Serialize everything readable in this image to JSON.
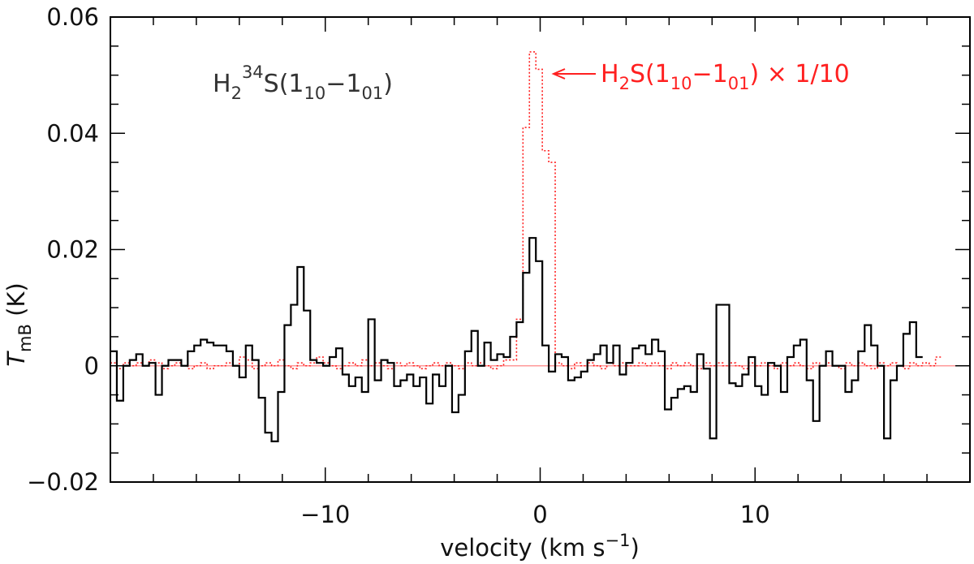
{
  "chart_data": {
    "type": "line",
    "title": "",
    "xlabel": {
      "prefix": "velocity (km s",
      "sup": "−1",
      "suffix": ")"
    },
    "ylabel": {
      "main": "T",
      "sub": "mB",
      "suffix": " (K)"
    },
    "xlim": [
      -20,
      20
    ],
    "ylim": [
      -0.02,
      0.06
    ],
    "x_ticks": [
      {
        "value": -10,
        "label": "−10"
      },
      {
        "value": 0,
        "label": "0"
      },
      {
        "value": 10,
        "label": "10"
      }
    ],
    "y_ticks": [
      {
        "value": -0.02,
        "label": "−0.02"
      },
      {
        "value": 0,
        "label": "0"
      },
      {
        "value": 0.02,
        "label": "0.02"
      },
      {
        "value": 0.04,
        "label": "0.04"
      },
      {
        "value": 0.06,
        "label": "0.06"
      }
    ],
    "x_minor_step": 2,
    "y_minor_step": 0.005,
    "baseline": {
      "value": 0,
      "color": "#ff9999"
    },
    "annotations": {
      "h2_34s": {
        "p1": "H",
        "s1": "2",
        "sup": "34",
        "p2": "S(1",
        "s2": "10",
        "p3": "−1",
        "s3": "01",
        "p4": ")"
      },
      "h2s": {
        "p1": "H",
        "s1": "2",
        "p2": "S(1",
        "s2": "10",
        "p3": "−1",
        "s3": "01",
        "p4": ") × 1/10"
      }
    },
    "series": [
      {
        "name": "H2 34S(1_10-1_01)",
        "color": "#000000",
        "style": "solid-histogram",
        "step": 0.3,
        "x_start": -20.0,
        "values": [
          0.0025,
          -0.006,
          0.0,
          0.001,
          0.002,
          0.0,
          0.0005,
          -0.005,
          0.0,
          0.001,
          0.001,
          0.0,
          0.0025,
          0.0035,
          0.0045,
          0.004,
          0.0035,
          0.0035,
          0.0025,
          0.0,
          -0.002,
          0.0035,
          0.001,
          -0.0055,
          -0.0115,
          -0.013,
          -0.0045,
          0.007,
          0.0105,
          0.017,
          0.0095,
          0.001,
          0.0005,
          0.0,
          0.0015,
          0.003,
          -0.0015,
          -0.0035,
          -0.002,
          -0.0045,
          0.008,
          -0.0025,
          0.001,
          0.0005,
          -0.0035,
          -0.0025,
          -0.0015,
          -0.0035,
          -0.002,
          -0.0065,
          -0.0015,
          -0.0035,
          0.0,
          -0.008,
          -0.005,
          0.0025,
          0.006,
          0.0,
          0.004,
          0.001,
          0.002,
          0.0015,
          0.005,
          0.0075,
          0.016,
          0.022,
          0.018,
          0.0035,
          -0.001,
          0.002,
          0.0015,
          -0.0025,
          -0.002,
          -0.001,
          0.001,
          0.002,
          0.0035,
          0.0005,
          0.0035,
          -0.0015,
          0.0005,
          0.003,
          0.0035,
          0.002,
          0.0045,
          0.0025,
          -0.0075,
          -0.0055,
          -0.004,
          -0.0035,
          -0.0045,
          0.002,
          -0.0005,
          -0.0125,
          0.0105,
          0.0105,
          -0.003,
          -0.0035,
          -0.0015,
          0.0015,
          -0.0035,
          -0.005,
          0.0005,
          0.0,
          -0.0045,
          0.0015,
          0.0035,
          0.0045,
          -0.0025,
          -0.0095,
          0.0,
          0.0025,
          0.0,
          0.0,
          -0.0045,
          -0.0025,
          0.0025,
          0.007,
          0.0035,
          0.0,
          -0.0125,
          -0.0025,
          0.0,
          0.0055,
          0.0075,
          0.0015
        ]
      },
      {
        "name": "H2S(1_10-1_01) x 1/10",
        "color": "#ff2020",
        "style": "dotted-histogram",
        "step": 0.3,
        "x_start": -20.0,
        "values": [
          0.0005,
          -0.0005,
          0.0005,
          0.0,
          0.0005,
          0.0,
          0.001,
          0.0005,
          -0.0005,
          0.0,
          0.0005,
          0.0,
          -0.0005,
          0.0,
          0.0005,
          -0.0005,
          0.0,
          0.0,
          0.0005,
          0.0,
          0.0015,
          0.001,
          -0.0005,
          0.0,
          0.0005,
          0.0,
          0.001,
          0.0,
          -0.0005,
          0.0005,
          0.0,
          0.0005,
          0.0015,
          0.0005,
          0.0,
          -0.0005,
          0.0,
          0.0005,
          0.0,
          0.001,
          0.0,
          0.0005,
          0.0,
          -0.0005,
          0.0005,
          0.0,
          0.0005,
          0.0,
          -0.0005,
          0.0,
          0.0005,
          0.0,
          0.0005,
          0.0,
          -0.0005,
          0.0005,
          0.0,
          0.0005,
          0.0,
          -0.0005,
          0.0,
          0.001,
          0.001,
          0.008,
          0.041,
          0.054,
          0.051,
          0.037,
          0.035,
          0.0005,
          0.0,
          -0.0005,
          0.0005,
          0.0,
          0.0005,
          0.0,
          -0.0005,
          0.0005,
          0.0,
          0.0005,
          0.0,
          0.0,
          0.0005,
          0.0,
          0.0005,
          0.0,
          -0.0005,
          0.0005,
          0.0,
          0.0005,
          0.0,
          -0.0005,
          0.0005,
          0.0,
          0.0005,
          0.0,
          0.0005,
          0.0,
          -0.0005,
          0.0005,
          0.0,
          0.0005,
          0.0,
          -0.0005,
          0.0005,
          0.0,
          0.0005,
          0.0,
          -0.0005,
          0.0005,
          0.0,
          0.0005,
          0.0,
          -0.0005,
          0.0005,
          0.0,
          0.0005,
          0.0,
          -0.0005,
          0.0005,
          0.0,
          0.0005,
          0.0,
          -0.0005,
          0.0005,
          0.0,
          0.0005,
          0.0,
          0.0015
        ]
      }
    ]
  }
}
